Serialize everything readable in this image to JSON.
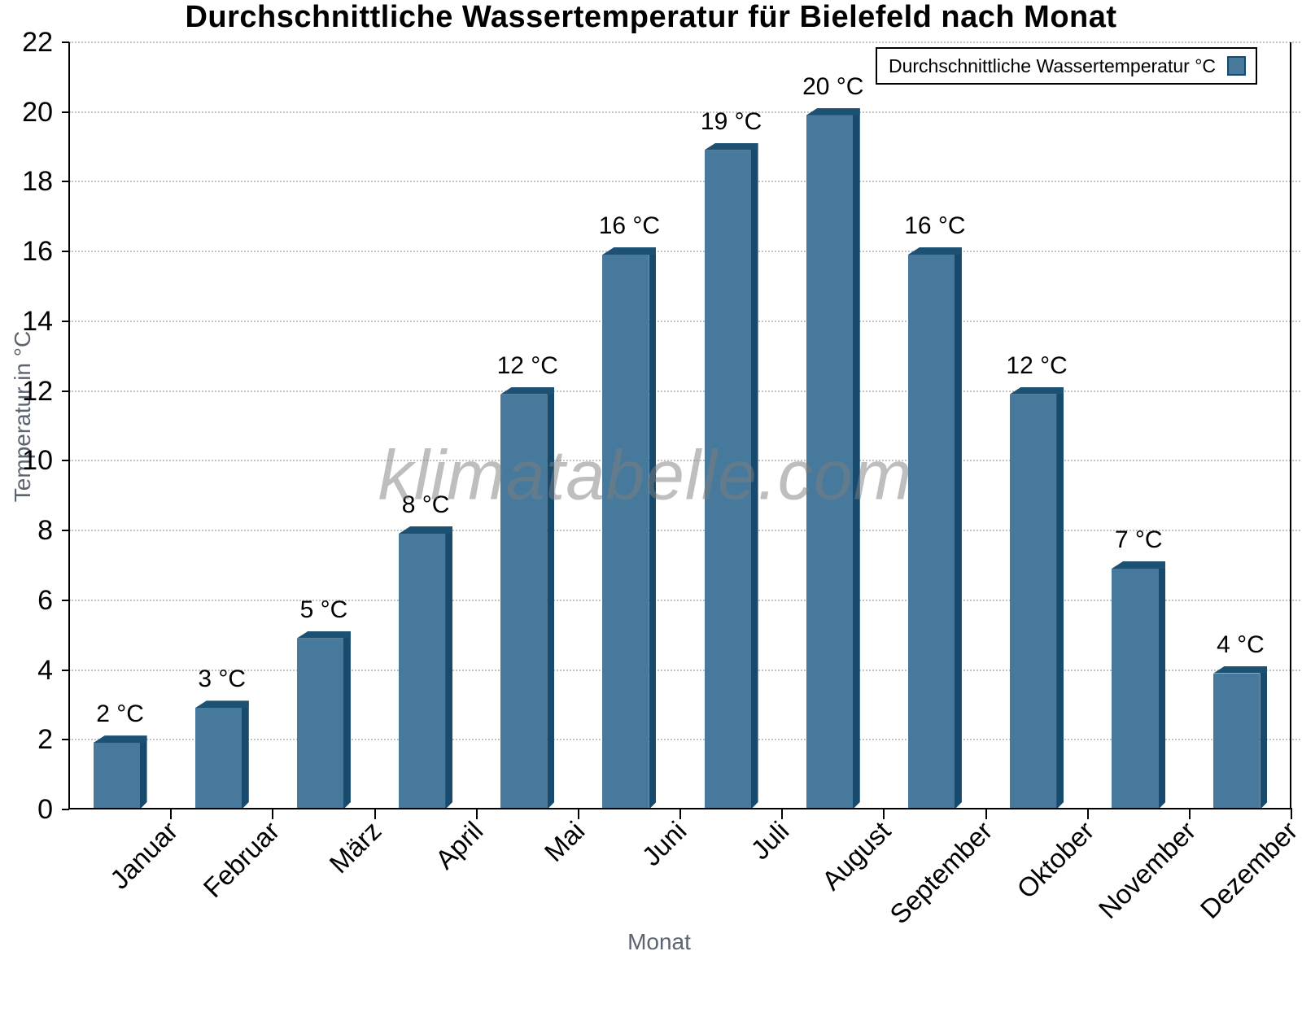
{
  "title": "Durchschnittliche Wassertemperatur für Bielefeld nach Monat",
  "watermark": "klimatabelle.com",
  "legend": {
    "label": "Durchschnittliche Wassertemperatur °C",
    "swatch_color": "#47799c"
  },
  "axes": {
    "ylabel": "Temperatur in °C",
    "xlabel": "Monat"
  },
  "chart_data": {
    "type": "bar",
    "title": "Durchschnittliche Wassertemperatur für Bielefeld nach Monat",
    "categories": [
      "Januar",
      "Februar",
      "März",
      "April",
      "Mai",
      "Juni",
      "Juli",
      "August",
      "September",
      "Oktober",
      "November",
      "Dezember"
    ],
    "series": [
      {
        "name": "Durchschnittliche Wassertemperatur °C",
        "values": [
          2,
          3,
          5,
          8,
          12,
          16,
          19,
          20,
          16,
          12,
          7,
          4
        ]
      }
    ],
    "value_labels": [
      "2 °C",
      "3 °C",
      "5 °C",
      "8 °C",
      "12 °C",
      "16 °C",
      "19 °C",
      "20 °C",
      "16 °C",
      "12 °C",
      "7 °C",
      "4 °C"
    ],
    "unit": "°C",
    "xlabel": "Monat",
    "ylabel": "Temperatur in °C",
    "ylim": [
      0,
      22
    ],
    "yticks": [
      0,
      2,
      4,
      6,
      8,
      10,
      12,
      14,
      16,
      18,
      20,
      22
    ],
    "grid": "horizontal-dotted",
    "legend_position": "top-right",
    "colors": {
      "bar_face": "#47799c",
      "bar_side": "#174a6d",
      "bar_top": "#1d5173",
      "grid_line": "#c3c3c3",
      "axis_line": "#000000",
      "tick_label": "#000000",
      "axis_label": "#5b6470",
      "watermark": "#9a9a9a"
    }
  }
}
